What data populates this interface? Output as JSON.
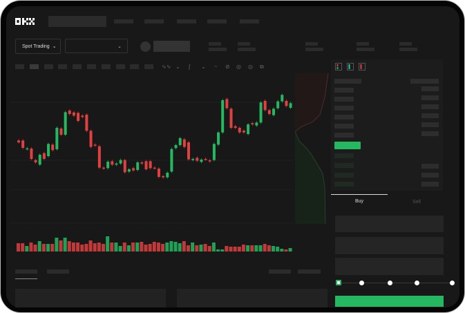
{
  "header": {
    "logo": "OKX",
    "nav_items": [
      "",
      "",
      "",
      "",
      ""
    ]
  },
  "market": {
    "mode_label": "Spot Trading",
    "pair_selector": ""
  },
  "toolbar": {
    "icons": [
      "indicator-icon",
      "line-icon",
      "draw-icon",
      "ruler-icon",
      "magnet-icon",
      "target-icon",
      "fullscreen-icon"
    ]
  },
  "orderbook": {
    "view_icons": [
      "both-sides-icon",
      "bids-only-icon",
      "asks-only-icon"
    ]
  },
  "trade": {
    "tabs": [
      "Buy",
      "Sell"
    ],
    "active_tab": "Buy",
    "slider_steps": [
      0,
      25,
      50,
      75,
      100
    ],
    "slider_value": 0
  },
  "colors": {
    "up": "#25b860",
    "down": "#e0403f",
    "background": "#181818"
  },
  "chart_data": {
    "type": "candlestick",
    "grid": true,
    "candles": [
      [
        170,
        162
      ],
      [
        170,
        138
      ],
      [
        132,
        136
      ],
      [
        135,
        90
      ],
      [
        85,
        75
      ],
      [
        65,
        108
      ],
      [
        115,
        90
      ],
      [
        102,
        155
      ],
      [
        152,
        128
      ],
      [
        132,
        225
      ],
      [
        222,
        195
      ],
      [
        195,
        293
      ],
      [
        300,
        285
      ],
      [
        292,
        278
      ],
      [
        290,
        255
      ],
      [
        278,
        272
      ],
      [
        282,
        212
      ],
      [
        212,
        142
      ],
      [
        152,
        148
      ],
      [
        145,
        52
      ],
      [
        52,
        48
      ],
      [
        50,
        78
      ],
      [
        80,
        65
      ],
      [
        65,
        70
      ],
      [
        70,
        85
      ],
      [
        85,
        32
      ],
      [
        35,
        45
      ],
      [
        50,
        40
      ],
      [
        42,
        75
      ],
      [
        75,
        70
      ],
      [
        80,
        45
      ],
      [
        80,
        50
      ],
      [
        52,
        50
      ],
      [
        48,
        12
      ],
      [
        15,
        10
      ],
      [
        10,
        30
      ],
      [
        35,
        133
      ],
      [
        137,
        150
      ],
      [
        150,
        180
      ],
      [
        175,
        142
      ],
      [
        162,
        88
      ],
      [
        85,
        90
      ],
      [
        95,
        82
      ],
      [
        77,
        87
      ],
      [
        90,
        88
      ],
      [
        84,
        79
      ],
      [
        85,
        155
      ],
      [
        152,
        205
      ],
      [
        205,
        345
      ],
      [
        350,
        310
      ],
      [
        308,
        225
      ],
      [
        232,
        225
      ],
      [
        225,
        205
      ],
      [
        213,
        205
      ],
      [
        198,
        240
      ],
      [
        245,
        240
      ],
      [
        235,
        248
      ],
      [
        248,
        335
      ],
      [
        342,
        302
      ],
      [
        302,
        285
      ],
      [
        280,
        308
      ],
      [
        310,
        340
      ],
      [
        340,
        368
      ],
      [
        342,
        320
      ],
      [
        312,
        332
      ]
    ],
    "volume": [
      12,
      12,
      8,
      13,
      10,
      15,
      11,
      11,
      11,
      20,
      16,
      20,
      15,
      13,
      13,
      10,
      11,
      16,
      12,
      13,
      11,
      22,
      13,
      13,
      8,
      13,
      9,
      13,
      13,
      14,
      10,
      11,
      14,
      13,
      11,
      13,
      15,
      14,
      12,
      15,
      9,
      13,
      9,
      10,
      11,
      8,
      13,
      3,
      3,
      8,
      7,
      7,
      7,
      10,
      9,
      9,
      9,
      9,
      11,
      9,
      8,
      7,
      4,
      3,
      5
    ]
  }
}
